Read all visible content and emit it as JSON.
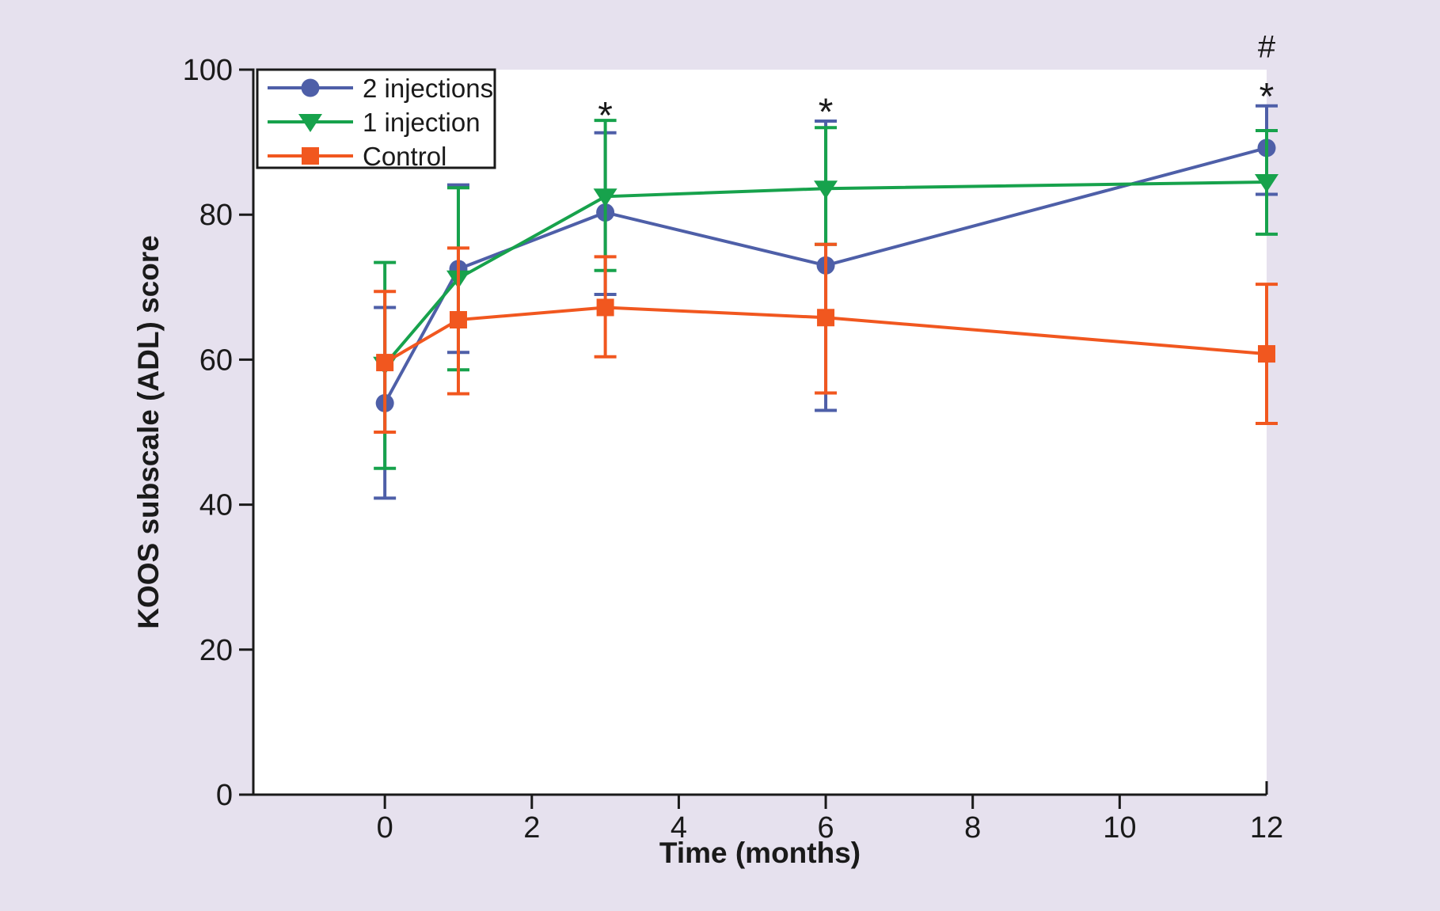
{
  "figure": {
    "background_color": "#E6E1EE",
    "plot_background_color": "#FFFFFF",
    "axis_color": "#1A1A1A"
  },
  "chart_data": {
    "type": "line",
    "title": "",
    "xlabel": "Time (months)",
    "ylabel": "KOOS subscale (ADL) score",
    "x": [
      0,
      1,
      3,
      6,
      12
    ],
    "x_tick_labels": [
      "0",
      "2",
      "4",
      "6",
      "8",
      "10",
      "12"
    ],
    "x_tick_values": [
      0,
      2,
      4,
      6,
      8,
      10,
      12
    ],
    "y_tick_labels": [
      "0",
      "20",
      "40",
      "60",
      "80",
      "100"
    ],
    "y_tick_values": [
      0,
      20,
      40,
      60,
      80,
      100
    ],
    "xlim": [
      -1.79,
      12
    ],
    "ylim": [
      0,
      100
    ],
    "grid": false,
    "legend_position": "top-left",
    "series": [
      {
        "name": "2 injections",
        "color": "#4E5FA8",
        "marker": "circle",
        "values": [
          54.0,
          72.5,
          80.3,
          73.0,
          89.2
        ],
        "error_up": [
          13.2,
          11.6,
          11.0,
          19.9,
          5.8
        ],
        "error_down": [
          13.1,
          11.5,
          11.3,
          20.0,
          6.4
        ]
      },
      {
        "name": "1 injection",
        "color": "#17A24C",
        "marker": "triangle-down",
        "values": [
          59.3,
          71.2,
          82.5,
          83.6,
          84.5
        ],
        "error_up": [
          14.1,
          12.5,
          10.5,
          8.4,
          7.1
        ],
        "error_down": [
          14.3,
          12.6,
          10.2,
          7.7,
          7.2
        ]
      },
      {
        "name": "Control",
        "color": "#F1571F",
        "marker": "square",
        "values": [
          59.6,
          65.5,
          67.2,
          65.8,
          60.8
        ],
        "error_up": [
          9.8,
          9.9,
          7.0,
          10.1,
          9.6
        ],
        "error_down": [
          9.6,
          10.2,
          6.8,
          10.4,
          9.6
        ]
      }
    ],
    "annotations": [
      {
        "text": "*",
        "x": 3,
        "y": 95.2
      },
      {
        "text": "*",
        "x": 6,
        "y": 95.7
      },
      {
        "text": "*",
        "x": 12,
        "y": 97.8
      },
      {
        "text": "#",
        "x": 12,
        "y": 103.1
      }
    ]
  }
}
